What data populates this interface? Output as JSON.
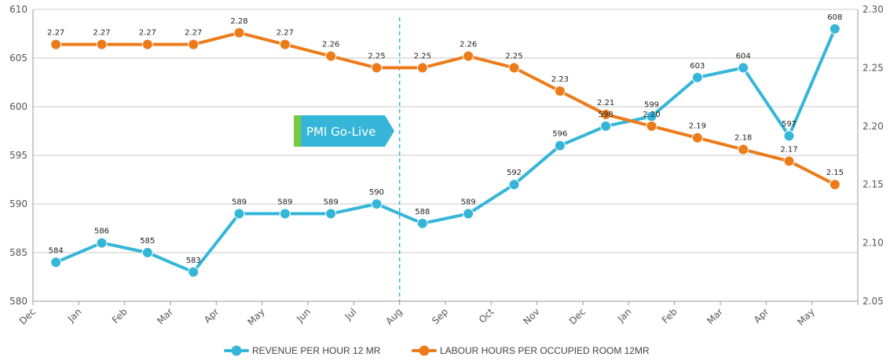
{
  "chart_data": {
    "type": "line",
    "categories": [
      "Dec",
      "Jan",
      "Feb",
      "Mar",
      "Apr",
      "May",
      "Jun",
      "Jul",
      "Aug",
      "Sep",
      "Oct",
      "Nov",
      "Dec",
      "Jan",
      "Feb",
      "Mar",
      "Apr",
      "May"
    ],
    "series": [
      {
        "name": "REVENUE PER HOUR 12 MR",
        "axis": "left",
        "color": "#35b6d8",
        "values": [
          584,
          586,
          585,
          583,
          589,
          589,
          589,
          590,
          588,
          589,
          592,
          596,
          598,
          599,
          603,
          604,
          597,
          608
        ]
      },
      {
        "name": "LABOUR HOURS PER OCCUPIED ROOM 12MR",
        "axis": "right",
        "color": "#ec7c1a",
        "values": [
          2.27,
          2.27,
          2.27,
          2.27,
          2.28,
          2.27,
          2.26,
          2.25,
          2.25,
          2.26,
          2.25,
          2.23,
          2.21,
          2.2,
          2.19,
          2.18,
          2.17,
          2.15
        ]
      }
    ],
    "y_left": {
      "range": [
        580,
        610
      ],
      "ticks": [
        "580",
        "585",
        "590",
        "595",
        "600",
        "605",
        "610"
      ]
    },
    "y_right": {
      "range": [
        2.05,
        2.3
      ],
      "ticks": [
        "2.05",
        "2.10",
        "2.15",
        "2.20",
        "2.25",
        "2.30"
      ]
    },
    "grid": true,
    "legend_position": "bottom-center",
    "annotation": {
      "text": "PMI Go-Live",
      "marker_after_category_index": 7,
      "box_color": "#35b6d8",
      "accent_color": "#7ac943",
      "line_color": "#35b6d8"
    }
  }
}
